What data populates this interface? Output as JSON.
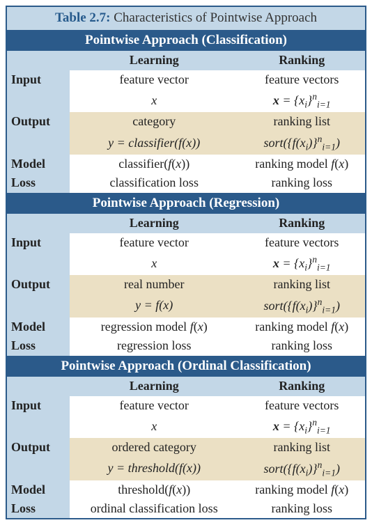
{
  "caption": {
    "label": "Table 2.7:",
    "text": "Characteristics of Pointwise Approach"
  },
  "colHeaders": {
    "learning": "Learning",
    "ranking": "Ranking"
  },
  "rowLabels": {
    "input": "Input",
    "output": "Output",
    "model": "Model",
    "loss": "Loss"
  },
  "sections": [
    {
      "title": "Pointwise Approach (Classification)",
      "input": {
        "learning": "feature vector",
        "ranking": "feature vectors",
        "learning_expr": "x",
        "ranking_expr_html": "<b>x</b> = {<span class='m'>x<span class='sub'>i</span></span>}<span class='sup'>n</span><span class='sub'>i=1</span>"
      },
      "output": {
        "learning": "category",
        "ranking": "ranking list",
        "learning_expr_html": "<span class='m'>y</span> = classifier(<span class='m'>f</span>(<span class='m'>x</span>))",
        "ranking_expr_html": "sort({<span class='m'>f</span>(<span class='m'>x<span class='sub'>i</span></span>)}<span class='sup'>n</span><span class='sub'>i=1</span>)"
      },
      "model": {
        "learning_html": "classifier(<span class='m'>f</span>(<span class='m'>x</span>))",
        "ranking_html": "ranking model <span class='m'>f</span>(<span class='m'>x</span>)"
      },
      "loss": {
        "learning": "classification loss",
        "ranking": "ranking loss"
      }
    },
    {
      "title": "Pointwise Approach (Regression)",
      "input": {
        "learning": "feature vector",
        "ranking": "feature vectors",
        "learning_expr": "x",
        "ranking_expr_html": "<b>x</b> = {<span class='m'>x<span class='sub'>i</span></span>}<span class='sup'>n</span><span class='sub'>i=1</span>"
      },
      "output": {
        "learning": "real number",
        "ranking": "ranking list",
        "learning_expr_html": "<span class='m'>y</span> = <span class='m'>f</span>(<span class='m'>x</span>)",
        "ranking_expr_html": "sort({<span class='m'>f</span>(<span class='m'>x<span class='sub'>i</span></span>)}<span class='sup'>n</span><span class='sub'>i=1</span>)"
      },
      "model": {
        "learning_html": "regression model <span class='m'>f</span>(<span class='m'>x</span>)",
        "ranking_html": "ranking model <span class='m'>f</span>(<span class='m'>x</span>)"
      },
      "loss": {
        "learning": "regression loss",
        "ranking": "ranking loss"
      }
    },
    {
      "title": "Pointwise Approach (Ordinal Classification)",
      "input": {
        "learning": "feature vector",
        "ranking": "feature vectors",
        "learning_expr": "x",
        "ranking_expr_html": "<b>x</b> = {<span class='m'>x<span class='sub'>i</span></span>}<span class='sup'>n</span><span class='sub'>i=1</span>"
      },
      "output": {
        "learning": "ordered category",
        "ranking": "ranking list",
        "learning_expr_html": "<span class='m'>y</span> = threshold(<span class='m'>f</span>(<span class='m'>x</span>))",
        "ranking_expr_html": "sort({<span class='m'>f</span>(<span class='m'>x<span class='sub'>i</span></span>)}<span class='sup'>n</span><span class='sub'>i=1</span>)"
      },
      "model": {
        "learning_html": "threshold(<span class='m'>f</span>(<span class='m'>x</span>))",
        "ranking_html": "ranking model <span class='m'>f</span>(<span class='m'>x</span>)"
      },
      "loss": {
        "learning": "ordinal classification loss",
        "ranking": "ranking loss"
      }
    }
  ],
  "colors": {
    "tableBorder": "#2b5a8a",
    "sectionBg": "#2b5a8a",
    "headerBg": "#c3d7e7",
    "tanBg": "#ebe0c4",
    "captionLabel": "#265a8c"
  }
}
